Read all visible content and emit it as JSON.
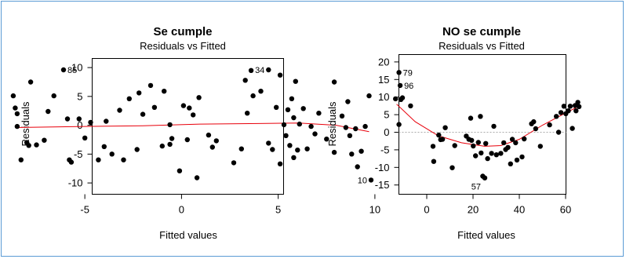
{
  "chart_data": [
    {
      "type": "scatter",
      "title": "Se cumple",
      "subtitle": "Residuals vs Fitted",
      "xlabel": "Fitted values",
      "ylabel": "Residuals",
      "xlim": [
        -9,
        10
      ],
      "ylim": [
        -11,
        11
      ],
      "xticks": [
        -5,
        0,
        5,
        10
      ],
      "yticks": [
        -10,
        -5,
        0,
        5,
        10
      ],
      "points": [
        [
          -8.7,
          5.1
        ],
        [
          -8.6,
          3.0
        ],
        [
          -8.5,
          2.0
        ],
        [
          -8.5,
          -0.2
        ],
        [
          -8.3,
          -6.0
        ],
        [
          -8.0,
          -3.0
        ],
        [
          -7.9,
          -3.5
        ],
        [
          -7.8,
          7.5
        ],
        [
          -7.5,
          -3.4
        ],
        [
          -7.1,
          -2.6
        ],
        [
          -6.9,
          2.4
        ],
        [
          -6.6,
          5.1
        ],
        [
          -6.1,
          9.6
        ],
        [
          -5.9,
          1.1
        ],
        [
          -5.8,
          -6.0
        ],
        [
          -5.7,
          -6.4
        ],
        [
          -5.3,
          1.1
        ],
        [
          -5.0,
          -2.2
        ],
        [
          -4.7,
          0.5
        ],
        [
          -4.3,
          -6.0
        ],
        [
          -4.0,
          -3.7
        ],
        [
          -3.9,
          0.7
        ],
        [
          -3.6,
          -5.0
        ],
        [
          -3.2,
          2.6
        ],
        [
          -3.0,
          -6.0
        ],
        [
          -2.7,
          4.6
        ],
        [
          -2.3,
          -4.2
        ],
        [
          -2.2,
          5.6
        ],
        [
          -2.0,
          1.9
        ],
        [
          -1.6,
          6.9
        ],
        [
          -1.4,
          3.1
        ],
        [
          -1.0,
          -3.6
        ],
        [
          -0.9,
          5.9
        ],
        [
          -0.6,
          -3.3
        ],
        [
          -0.6,
          0.1
        ],
        [
          -0.5,
          -2.3
        ],
        [
          -0.1,
          -7.9
        ],
        [
          0.1,
          3.4
        ],
        [
          0.3,
          -2.5
        ],
        [
          0.4,
          3.0
        ],
        [
          0.6,
          1.8
        ],
        [
          0.8,
          -9.1
        ],
        [
          0.9,
          4.8
        ],
        [
          1.4,
          -1.7
        ],
        [
          1.6,
          -3.8
        ],
        [
          1.8,
          -2.7
        ],
        [
          2.7,
          -6.5
        ],
        [
          3.1,
          -4.1
        ],
        [
          3.3,
          7.8
        ],
        [
          3.4,
          2.1
        ],
        [
          3.6,
          9.5
        ],
        [
          3.7,
          5.1
        ],
        [
          4.1,
          5.9
        ],
        [
          4.5,
          -3.1
        ],
        [
          4.5,
          9.6
        ],
        [
          4.7,
          -4.2
        ],
        [
          4.9,
          3.1
        ],
        [
          5.1,
          -6.7
        ],
        [
          5.1,
          8.7
        ],
        [
          5.3,
          0.1
        ],
        [
          5.4,
          -1.8
        ],
        [
          5.5,
          2.7
        ],
        [
          5.6,
          -3.5
        ],
        [
          5.7,
          4.6
        ],
        [
          5.8,
          1.3
        ],
        [
          5.8,
          -5.6
        ],
        [
          5.9,
          7.6
        ],
        [
          6.0,
          -4.3
        ],
        [
          6.1,
          0.2
        ],
        [
          6.3,
          2.9
        ],
        [
          6.5,
          -4.1
        ],
        [
          6.7,
          -0.2
        ],
        [
          6.9,
          -1.5
        ],
        [
          7.1,
          2.1
        ],
        [
          7.5,
          -2.4
        ],
        [
          7.9,
          7.5
        ],
        [
          7.9,
          -4.7
        ],
        [
          8.3,
          1.6
        ],
        [
          8.5,
          -0.4
        ],
        [
          8.6,
          4.1
        ],
        [
          8.7,
          -1.8
        ],
        [
          8.8,
          -5.0
        ],
        [
          9.0,
          -0.6
        ],
        [
          9.1,
          -7.2
        ],
        [
          9.3,
          -4.5
        ],
        [
          9.5,
          -0.2
        ],
        [
          9.7,
          5.1
        ],
        [
          9.8,
          -9.5
        ]
      ],
      "smoother": [
        [
          -8.6,
          -0.4
        ],
        [
          -5,
          -0.2
        ],
        [
          -2,
          -0.1
        ],
        [
          1,
          0.2
        ],
        [
          4,
          0.3
        ],
        [
          6,
          0.4
        ],
        [
          8,
          0.0
        ],
        [
          9.7,
          -1.1
        ]
      ],
      "annotations": [
        {
          "label": "85",
          "x": -6.1,
          "y": 9.6
        },
        {
          "label": "34",
          "x": 4.5,
          "y": 9.6
        },
        {
          "label": "10",
          "x": 9.8,
          "y": -9.5
        }
      ]
    },
    {
      "type": "scatter",
      "title": "NO se cumple",
      "subtitle": "Residuals vs Fitted",
      "xlabel": "Fitted values",
      "ylabel": "Residuals",
      "xlim": [
        -15,
        70
      ],
      "ylim": [
        -17,
        21
      ],
      "xticks": [
        0,
        20,
        40,
        60
      ],
      "yticks": [
        -15,
        -10,
        -5,
        0,
        5,
        10,
        15,
        20
      ],
      "hline": 0,
      "points": [
        [
          -13.5,
          9.5
        ],
        [
          -12.0,
          2.2
        ],
        [
          -12.0,
          17.0
        ],
        [
          -11.5,
          13.3
        ],
        [
          -11.2,
          9.3
        ],
        [
          -10.5,
          9.8
        ],
        [
          -7.0,
          7.5
        ],
        [
          2.7,
          -4.0
        ],
        [
          3.0,
          -8.3
        ],
        [
          5.2,
          -0.8
        ],
        [
          6.0,
          -2.1
        ],
        [
          6.8,
          -2.0
        ],
        [
          8.0,
          1.3
        ],
        [
          11.0,
          -10.1
        ],
        [
          12.1,
          -3.8
        ],
        [
          17.1,
          -1.1
        ],
        [
          18.2,
          -2.0
        ],
        [
          19.0,
          4.0
        ],
        [
          19.4,
          -2.3
        ],
        [
          20.1,
          -3.9
        ],
        [
          21.1,
          -6.7
        ],
        [
          22.3,
          -2.9
        ],
        [
          23.2,
          4.5
        ],
        [
          23.5,
          -5.9
        ],
        [
          24.2,
          -12.5
        ],
        [
          25.1,
          -13.0
        ],
        [
          25.5,
          -3.2
        ],
        [
          26.3,
          -7.5
        ],
        [
          28.0,
          -6.0
        ],
        [
          29.0,
          1.7
        ],
        [
          30.1,
          -6.4
        ],
        [
          32.0,
          -6.0
        ],
        [
          33.3,
          -3.0
        ],
        [
          34.1,
          -4.9
        ],
        [
          35.1,
          -4.3
        ],
        [
          36.2,
          -9.0
        ],
        [
          37.0,
          -2.0
        ],
        [
          38.4,
          -3.0
        ],
        [
          39.0,
          -7.9
        ],
        [
          41.2,
          -7.0
        ],
        [
          42.1,
          -1.9
        ],
        [
          45.3,
          2.4
        ],
        [
          46.2,
          3.0
        ],
        [
          47.1,
          1.0
        ],
        [
          49.1,
          -4.0
        ],
        [
          53.1,
          2.1
        ],
        [
          56.0,
          4.5
        ],
        [
          57.0,
          0.0
        ],
        [
          58.0,
          5.6
        ],
        [
          59.3,
          7.4
        ],
        [
          60.1,
          5.3
        ],
        [
          61.2,
          6.1
        ],
        [
          62.0,
          7.4
        ],
        [
          62.9,
          1.1
        ],
        [
          64.1,
          7.6
        ],
        [
          64.5,
          6.1
        ],
        [
          65.3,
          8.5
        ],
        [
          65.8,
          7.3
        ]
      ],
      "smoother": [
        [
          -13,
          8
        ],
        [
          -5,
          3
        ],
        [
          5,
          -1
        ],
        [
          15,
          -3
        ],
        [
          25,
          -4
        ],
        [
          32,
          -3.8
        ],
        [
          40,
          -2
        ],
        [
          50,
          2
        ],
        [
          60,
          5.5
        ],
        [
          66,
          7.5
        ]
      ],
      "annotations": [
        {
          "label": "79",
          "x": -12.0,
          "y": 17.0
        },
        {
          "label": "96",
          "x": -11.5,
          "y": 13.3
        },
        {
          "label": "57",
          "x": 25.1,
          "y": -13.0
        }
      ]
    }
  ]
}
